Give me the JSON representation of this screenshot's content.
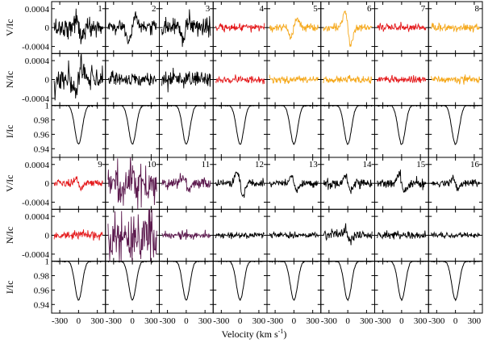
{
  "chart_data": {
    "type": "line",
    "title": "",
    "xlabel": "Velocity (km s",
    "xlabel_sup": "-1",
    "xlabel_close": ")",
    "x_ticks": [
      -300,
      0,
      300
    ],
    "x_tick_labels": [
      "-300",
      "0",
      "300"
    ],
    "xlim": [
      -430,
      430
    ],
    "row_labels": [
      "V/Ic",
      "N/Ic",
      "I/Ic",
      "V/Ic",
      "N/Ic",
      "I/Ic"
    ],
    "vn_ylim": [
      -0.00055,
      0.00055
    ],
    "vn_ticks": [
      0.0004,
      0,
      -0.0004
    ],
    "vn_tick_labels": [
      "0.0004",
      "0",
      "-0.0004"
    ],
    "i_ylim": [
      0.928,
      1.0
    ],
    "i_ticks": [
      1.0,
      0.98,
      0.96,
      0.94
    ],
    "i_tick_labels": [
      "1",
      "0.98",
      "0.96",
      "0.94"
    ],
    "profile": {
      "continuum": 1.0,
      "depth": 0.0535,
      "center": 0,
      "half_width": 95,
      "wings": 185
    },
    "colors": {
      "black": "#000000",
      "red": "#e41a1c",
      "orange": "#f5a81b",
      "purple": "#5c1a4e"
    },
    "observations": [
      {
        "label": "1",
        "color": "black",
        "v_noise": 0.00011,
        "v_signal": 0.00018,
        "n_noise": 0.00012,
        "n_signal": -0.00028
      },
      {
        "label": "2",
        "color": "black",
        "v_noise": 7e-05,
        "v_signal": -0.00028,
        "n_noise": 7e-05,
        "n_signal": 0
      },
      {
        "label": "3",
        "color": "black",
        "v_noise": 0.0001,
        "v_signal": -0.00022,
        "n_noise": 9e-05,
        "n_signal": 0
      },
      {
        "label": "4",
        "color": "red",
        "v_noise": 4e-05,
        "v_signal": 0,
        "n_noise": 4e-05,
        "n_signal": 0
      },
      {
        "label": "5",
        "color": "orange",
        "v_noise": 4e-05,
        "v_signal": -0.0002,
        "n_noise": 4e-05,
        "n_signal": 0
      },
      {
        "label": "6",
        "color": "orange",
        "v_noise": 4e-05,
        "v_signal": 0.00038,
        "n_noise": 4e-05,
        "n_signal": 0
      },
      {
        "label": "7",
        "color": "red",
        "v_noise": 4e-05,
        "v_signal": 0,
        "n_noise": 4e-05,
        "n_signal": 0
      },
      {
        "label": "8",
        "color": "orange",
        "v_noise": 4e-05,
        "v_signal": 0,
        "n_noise": 4e-05,
        "n_signal": 0
      },
      {
        "label": "9",
        "color": "red",
        "v_noise": 4e-05,
        "v_signal": 0.00012,
        "n_noise": 4e-05,
        "n_signal": 0
      },
      {
        "label": "10",
        "color": "purple",
        "v_noise": 0.00026,
        "v_signal": 0,
        "n_noise": 0.00028,
        "n_signal": 0
      },
      {
        "label": "11",
        "color": "purple",
        "v_noise": 6e-05,
        "v_signal": 0.00014,
        "n_noise": 4e-05,
        "n_signal": 0
      },
      {
        "label": "12",
        "color": "black",
        "v_noise": 4e-05,
        "v_signal": 0.00026,
        "n_noise": 3e-05,
        "n_signal": 0
      },
      {
        "label": "13",
        "color": "black",
        "v_noise": 4e-05,
        "v_signal": 0.00016,
        "n_noise": 3e-05,
        "n_signal": 0
      },
      {
        "label": "14",
        "color": "black",
        "v_noise": 5e-05,
        "v_signal": 0.00014,
        "n_noise": 6e-05,
        "n_signal": 0.0001
      },
      {
        "label": "15",
        "color": "black",
        "v_noise": 5e-05,
        "v_signal": 0.00018,
        "n_noise": 4e-05,
        "n_signal": 0
      },
      {
        "label": "16",
        "color": "black",
        "v_noise": 4e-05,
        "v_signal": 0.00012,
        "n_noise": 3e-05,
        "n_signal": 0
      }
    ]
  }
}
